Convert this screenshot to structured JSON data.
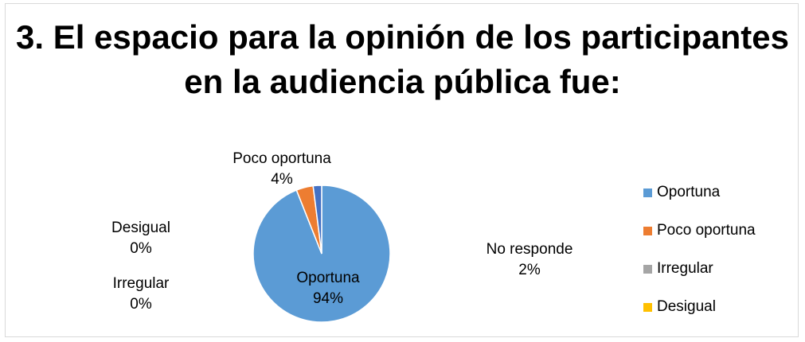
{
  "chart_data": {
    "type": "pie",
    "title": "3. El espacio para la opinión  de los participantes en la audiencia pública fue:",
    "categories": [
      "Oportuna",
      "Poco oportuna",
      "Irregular",
      "Desigual",
      "No responde"
    ],
    "values": [
      94,
      4,
      0,
      0,
      2
    ],
    "value_labels": [
      "94%",
      "4%",
      "0%",
      "0%",
      "2%"
    ],
    "colors": [
      "#5b9bd5",
      "#ed7d31",
      "#a5a5a5",
      "#ffc000",
      "#4472c4"
    ],
    "legend": {
      "placement": "right",
      "entries": [
        "Oportuna",
        "Poco oportuna",
        "Irregular",
        "Desigual"
      ]
    }
  }
}
